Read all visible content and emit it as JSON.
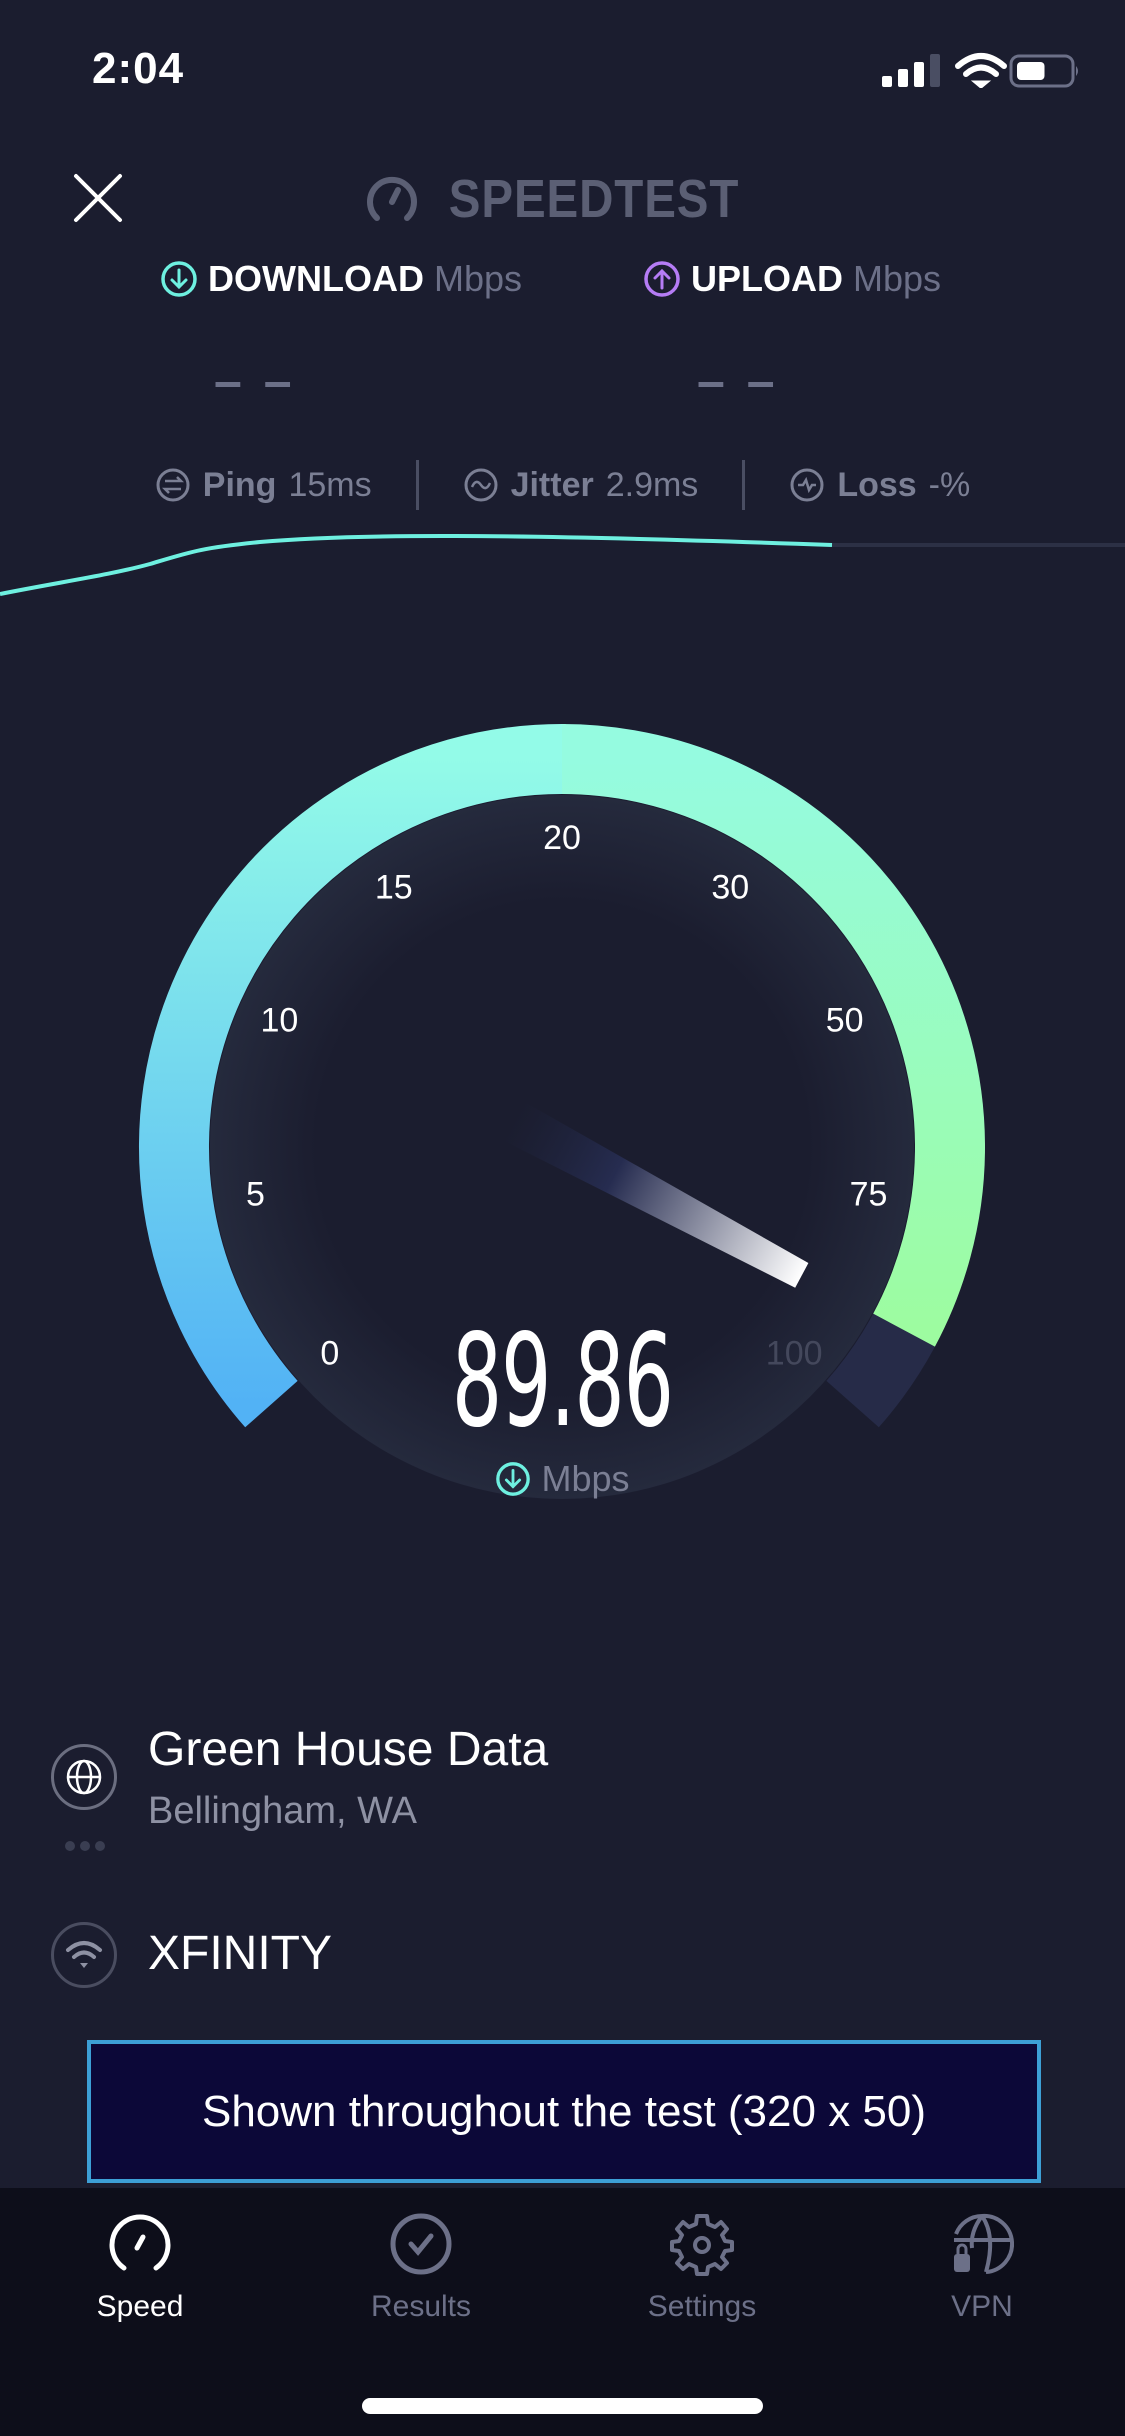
{
  "status_bar": {
    "time": "2:04",
    "signal_icon": "cellular-signal-icon",
    "wifi_icon": "wifi-icon",
    "battery_icon": "battery-icon",
    "battery_level": 0.55
  },
  "header": {
    "close_icon": "close-icon",
    "logo_text": "SPEEDTEST"
  },
  "metrics": {
    "download": {
      "label": "DOWNLOAD",
      "unit": "Mbps",
      "value": "– –",
      "color": "#6ef0e0"
    },
    "upload": {
      "label": "UPLOAD",
      "unit": "Mbps",
      "value": "– –",
      "color": "#b57cf5"
    }
  },
  "stats": [
    {
      "label": "Ping",
      "value": "15ms",
      "icon": "ping-icon"
    },
    {
      "label": "Jitter",
      "value": "2.9ms",
      "icon": "jitter-icon"
    },
    {
      "label": "Loss",
      "value": "-%",
      "icon": "loss-icon"
    }
  ],
  "gauge": {
    "ticks": [
      "0",
      "5",
      "10",
      "15",
      "20",
      "30",
      "50",
      "75",
      "100"
    ],
    "value": 89.86,
    "value_text": "89.86",
    "unit": "Mbps",
    "colors": {
      "start": "#52b2f5",
      "mid": "#93fbe8",
      "end": "#9dfca0",
      "track": "#262b48"
    }
  },
  "server": {
    "name": "Green House Data",
    "location": "Bellingham, WA",
    "icon": "globe-icon"
  },
  "provider": {
    "name": "XFINITY",
    "icon": "wifi-icon"
  },
  "ad": {
    "text": "Shown throughout the test (320 x 50)"
  },
  "tabs": [
    {
      "label": "Speed",
      "icon": "speedometer-icon",
      "active": true
    },
    {
      "label": "Results",
      "icon": "check-circle-icon",
      "active": false
    },
    {
      "label": "Settings",
      "icon": "gear-icon",
      "active": false
    },
    {
      "label": "VPN",
      "icon": "globe-lock-icon",
      "active": false
    }
  ]
}
